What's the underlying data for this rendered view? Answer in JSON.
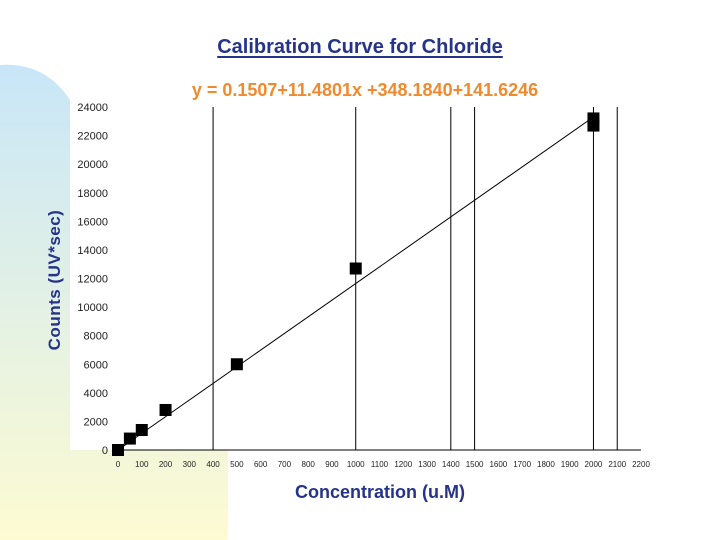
{
  "chart_data": {
    "type": "scatter",
    "title": "Calibration Curve for Chloride",
    "equation": "y = 0.1507+11.4801x +348.1840+141.6246",
    "xlabel": "Concentration (u.M)",
    "ylabel": "Counts (UV*sec)",
    "xlim": [
      0,
      2200
    ],
    "ylim": [
      0,
      24000
    ],
    "x_ticks": [
      0,
      100,
      200,
      300,
      400,
      500,
      600,
      700,
      800,
      900,
      1000,
      1100,
      1200,
      1300,
      1400,
      1500,
      1600,
      1700,
      1800,
      1900,
      2000,
      2100,
      2200
    ],
    "y_ticks": [
      0,
      2000,
      4000,
      6000,
      8000,
      10000,
      12000,
      14000,
      16000,
      18000,
      20000,
      22000,
      24000
    ],
    "x_gridlines": [
      400,
      1000,
      1400,
      1500,
      2000,
      2100
    ],
    "series": [
      {
        "points": [
          {
            "x": 0,
            "y": 0
          },
          {
            "x": 50,
            "y": 800
          },
          {
            "x": 100,
            "y": 1400
          },
          {
            "x": 200,
            "y": 2800
          },
          {
            "x": 500,
            "y": 6000
          },
          {
            "x": 1000,
            "y": 12700
          },
          {
            "x": 2000,
            "y": 22700
          },
          {
            "x": 2000,
            "y": 23200
          }
        ]
      }
    ],
    "fit_line": {
      "x": [
        0,
        2000
      ],
      "y": [
        0,
        23300
      ]
    },
    "colors": {
      "title": "#26338a",
      "equation": "#f08a2c",
      "marker": "#000000",
      "grid": "#000000"
    }
  }
}
